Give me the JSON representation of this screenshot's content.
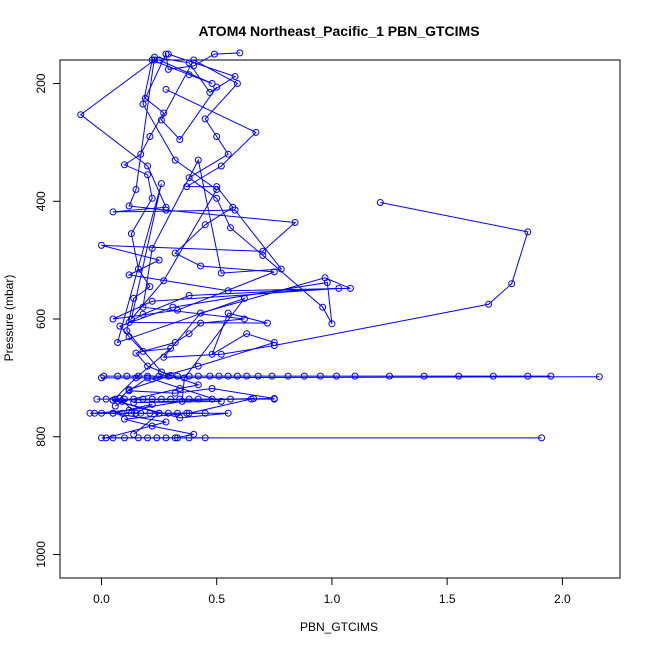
{
  "chart_data": {
    "type": "line",
    "title": "ATOM4 Northeast_Pacific_1 PBN_GTCIMS",
    "xlabel": "PBN_GTCIMS",
    "ylabel": "Pressure (mbar)",
    "xlim": [
      -0.18,
      2.25
    ],
    "ylim": [
      1040,
      160
    ],
    "y_reversed": true,
    "xticks": [
      0.0,
      0.5,
      1.0,
      1.5,
      2.0
    ],
    "xtick_labels": [
      "0.0",
      "0.5",
      "1.0",
      "1.5",
      "2.0"
    ],
    "yticks": [
      200,
      400,
      600,
      800,
      1000
    ],
    "ytick_labels": [
      "200",
      "400",
      "600",
      "800",
      "1000"
    ],
    "grid": false,
    "legend": "none",
    "colors": {
      "series": "#0000ff",
      "axes": "#000000"
    },
    "series": [
      {
        "values": [
          [
            0.23,
            160
          ],
          [
            -0.09,
            253
          ],
          [
            0.2,
            340
          ],
          [
            0.28,
            410
          ],
          [
            0.05,
            418
          ],
          [
            0.58,
            415
          ],
          [
            0.78,
            515
          ],
          [
            0.52,
            522
          ],
          [
            0.42,
            330
          ],
          [
            0.22,
            480
          ],
          [
            0.18,
            580
          ],
          [
            0.62,
            600
          ],
          [
            0.43,
            607
          ],
          [
            0.38,
            625
          ],
          [
            0.32,
            640
          ],
          [
            0.15,
            658
          ],
          [
            0.2,
            680
          ],
          [
            0.3,
            696
          ],
          [
            0.12,
            720
          ],
          [
            0.08,
            735
          ],
          [
            0.15,
            760
          ],
          [
            0.22,
            745
          ],
          [
            0.05,
            760
          ],
          [
            0.28,
            775
          ],
          [
            0.02,
            802
          ],
          [
            1.91,
            802
          ]
        ]
      },
      {
        "values": [
          [
            0.25,
            160
          ],
          [
            0.48,
            200
          ],
          [
            0.38,
            185
          ],
          [
            0.22,
            160
          ],
          [
            0.18,
            235
          ],
          [
            0.32,
            330
          ],
          [
            0.5,
            380
          ],
          [
            0.27,
            535
          ],
          [
            0.13,
            600
          ],
          [
            0.26,
            370
          ],
          [
            0.07,
            640
          ],
          [
            0.62,
            565
          ],
          [
            0.36,
            700
          ],
          [
            0.35,
            740
          ],
          [
            0.12,
            755
          ],
          [
            -0.03,
            760
          ],
          [
            0.55,
            760
          ],
          [
            0.34,
            768
          ],
          [
            0.05,
            738
          ],
          [
            0.75,
            735
          ],
          [
            0.48,
            718
          ],
          [
            0.32,
            726
          ],
          [
            0.12,
            722
          ],
          [
            0.2,
            700
          ],
          [
            0.0,
            700
          ],
          [
            2.16,
            698
          ]
        ]
      },
      {
        "values": [
          [
            0.28,
            210
          ],
          [
            0.67,
            283
          ],
          [
            0.52,
            340
          ],
          [
            0.37,
            375
          ],
          [
            0.5,
            375
          ],
          [
            0.57,
            410
          ],
          [
            0.45,
            440
          ],
          [
            0.32,
            488
          ],
          [
            0.43,
            510
          ],
          [
            0.75,
            520
          ],
          [
            0.33,
            585
          ],
          [
            0.05,
            600
          ],
          [
            0.22,
            570
          ],
          [
            1.03,
            548
          ],
          [
            0.38,
            560
          ],
          [
            0.18,
            592
          ],
          [
            0.12,
            606
          ],
          [
            0.72,
            607
          ],
          [
            0.55,
            590
          ],
          [
            0.48,
            660
          ],
          [
            0.63,
            625
          ],
          [
            0.75,
            640
          ],
          [
            0.42,
            680
          ],
          [
            0.22,
            702
          ],
          [
            0.52,
            740
          ],
          [
            0.14,
            742
          ],
          [
            0.66,
            735
          ],
          [
            0.38,
            760
          ],
          [
            0.1,
            770
          ],
          [
            0.22,
            782
          ],
          [
            0.4,
            796
          ],
          [
            0.32,
            802
          ]
        ]
      },
      {
        "values": [
          [
            1.21,
            402
          ],
          [
            1.85,
            452
          ],
          [
            1.78,
            540
          ],
          [
            1.68,
            575
          ],
          [
            0.75,
            645
          ],
          [
            0.52,
            660
          ],
          [
            0.27,
            665
          ],
          [
            0.43,
            590
          ],
          [
            0.97,
            530
          ],
          [
            1.08,
            548
          ],
          [
            0.55,
            552
          ],
          [
            0.12,
            525
          ],
          [
            0.25,
            500
          ],
          [
            0.0,
            475
          ],
          [
            0.7,
            485
          ],
          [
            0.84,
            436
          ],
          [
            0.28,
            415
          ],
          [
            0.12,
            408
          ],
          [
            0.15,
            380
          ],
          [
            0.23,
            155
          ],
          [
            0.38,
            165
          ],
          [
            0.47,
            215
          ],
          [
            0.58,
            188
          ],
          [
            0.29,
            150
          ]
        ]
      },
      {
        "values": [
          [
            0.5,
            206
          ],
          [
            0.34,
            295
          ],
          [
            0.26,
            262
          ],
          [
            0.4,
            160
          ],
          [
            0.59,
            200
          ],
          [
            0.45,
            260
          ],
          [
            0.5,
            290
          ],
          [
            0.55,
            320
          ],
          [
            0.38,
            360
          ],
          [
            0.5,
            395
          ],
          [
            0.56,
            445
          ],
          [
            0.7,
            492
          ],
          [
            0.96,
            580
          ],
          [
            1.0,
            608
          ],
          [
            0.98,
            538
          ],
          [
            0.31,
            580
          ],
          [
            0.08,
            612
          ],
          [
            0.12,
            630
          ],
          [
            0.18,
            655
          ],
          [
            0.3,
            650
          ],
          [
            0.15,
            700
          ],
          [
            0.05,
            738
          ],
          [
            0.25,
            760
          ],
          [
            0.14,
            796
          ]
        ]
      },
      {
        "values": [
          [
            0.6,
            148
          ],
          [
            0.49,
            150
          ],
          [
            0.4,
            170
          ],
          [
            0.29,
            176
          ],
          [
            0.28,
            150
          ],
          [
            0.19,
            225
          ],
          [
            0.27,
            250
          ],
          [
            0.21,
            290
          ],
          [
            0.17,
            320
          ],
          [
            0.1,
            338
          ],
          [
            0.2,
            355
          ],
          [
            0.22,
            395
          ],
          [
            0.13,
            455
          ],
          [
            0.16,
            515
          ],
          [
            0.21,
            545
          ],
          [
            0.14,
            565
          ],
          [
            0.11,
            620
          ],
          [
            0.26,
            690
          ],
          [
            0.42,
            712
          ],
          [
            0.34,
            718
          ],
          [
            0.09,
            740
          ],
          [
            0.06,
            748
          ]
        ]
      },
      {
        "values": [
          [
            0.01,
            697
          ],
          [
            0.07,
            697
          ],
          [
            0.11,
            697
          ],
          [
            0.16,
            697
          ],
          [
            0.2,
            697
          ],
          [
            0.25,
            697
          ],
          [
            0.29,
            697
          ],
          [
            0.33,
            697
          ],
          [
            0.38,
            697
          ],
          [
            0.42,
            697
          ],
          [
            0.47,
            697
          ],
          [
            0.51,
            697
          ],
          [
            0.55,
            697
          ],
          [
            0.59,
            697
          ],
          [
            0.63,
            697
          ],
          [
            0.68,
            697
          ],
          [
            0.74,
            697
          ],
          [
            0.81,
            697
          ],
          [
            0.88,
            697
          ],
          [
            0.95,
            697
          ],
          [
            1.02,
            697
          ],
          [
            1.1,
            697
          ],
          [
            1.25,
            697
          ],
          [
            1.4,
            697
          ],
          [
            1.55,
            697
          ],
          [
            1.7,
            697
          ],
          [
            1.85,
            697
          ],
          [
            1.95,
            697
          ]
        ]
      },
      {
        "values": [
          [
            -0.02,
            736
          ],
          [
            0.02,
            736
          ],
          [
            0.06,
            736
          ],
          [
            0.1,
            736
          ],
          [
            0.14,
            736
          ],
          [
            0.18,
            736
          ],
          [
            0.22,
            736
          ],
          [
            0.26,
            736
          ],
          [
            0.3,
            736
          ],
          [
            0.34,
            736
          ],
          [
            0.38,
            736
          ],
          [
            0.42,
            736
          ],
          [
            0.48,
            736
          ],
          [
            0.56,
            736
          ],
          [
            0.65,
            736
          ],
          [
            0.75,
            736
          ]
        ]
      },
      {
        "values": [
          [
            -0.05,
            760
          ],
          [
            0.0,
            760
          ],
          [
            0.05,
            760
          ],
          [
            0.09,
            760
          ],
          [
            0.13,
            760
          ],
          [
            0.17,
            760
          ],
          [
            0.21,
            760
          ],
          [
            0.25,
            760
          ],
          [
            0.29,
            760
          ],
          [
            0.33,
            760
          ],
          [
            0.37,
            760
          ],
          [
            0.45,
            760
          ]
        ]
      },
      {
        "values": [
          [
            0.0,
            802
          ],
          [
            0.05,
            802
          ],
          [
            0.1,
            802
          ],
          [
            0.16,
            802
          ],
          [
            0.2,
            802
          ],
          [
            0.24,
            802
          ],
          [
            0.28,
            802
          ],
          [
            0.33,
            802
          ],
          [
            0.38,
            802
          ],
          [
            0.45,
            802
          ]
        ]
      }
    ]
  }
}
